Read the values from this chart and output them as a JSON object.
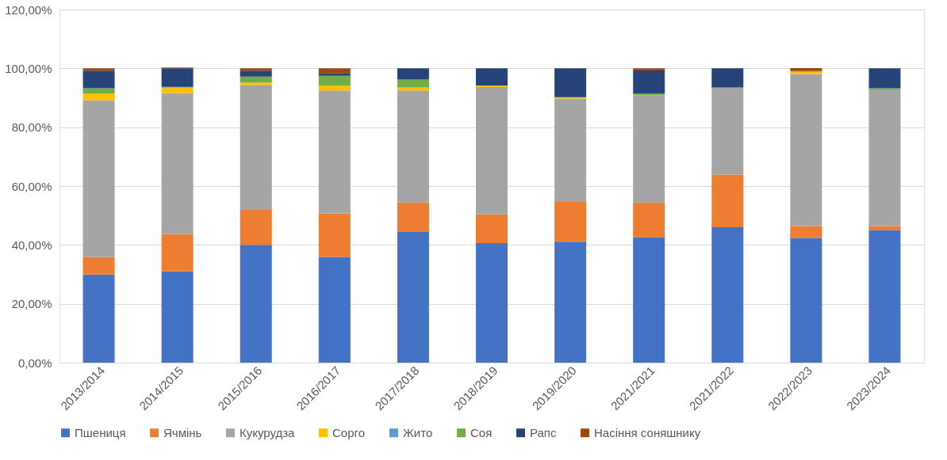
{
  "chart_data": {
    "type": "bar",
    "stacked": true,
    "grid": "y",
    "legend": "bottom",
    "categories": [
      "2013/2014",
      "2014/2015",
      "2015/2016",
      "2016/2017",
      "2017/2018",
      "2018/2019",
      "2019/2020",
      "2021/2021",
      "2021/2022",
      "2022/2023",
      "2023/2024"
    ],
    "ylim": [
      0,
      120
    ],
    "yticks": [
      {
        "value": 0,
        "label": "0,00%"
      },
      {
        "value": 20,
        "label": "20,00%"
      },
      {
        "value": 40,
        "label": "40,00%"
      },
      {
        "value": 60,
        "label": "60,00%"
      },
      {
        "value": 80,
        "label": "80,00%"
      },
      {
        "value": 100,
        "label": "100,00%"
      },
      {
        "value": 120,
        "label": "120,00%"
      }
    ],
    "series": [
      {
        "name": "Пшениця",
        "color": "#4472c4",
        "values": [
          29.9,
          31.0,
          40.0,
          35.9,
          44.4,
          40.6,
          41.1,
          42.6,
          46.0,
          42.4,
          45.1
        ]
      },
      {
        "name": "Ячмінь",
        "color": "#ed7d31",
        "values": [
          6.0,
          12.7,
          12.1,
          14.8,
          10.0,
          9.8,
          13.7,
          11.8,
          17.9,
          4.0,
          1.3
        ]
      },
      {
        "name": "Кукурудза",
        "color": "#a5a5a5",
        "values": [
          53.2,
          47.9,
          42.3,
          41.8,
          38.1,
          43.2,
          34.9,
          36.4,
          29.6,
          51.7,
          46.2
        ]
      },
      {
        "name": "Сорго",
        "color": "#ffc000",
        "values": [
          2.4,
          1.8,
          0.8,
          1.7,
          1.0,
          0.6,
          0.5,
          0,
          0,
          0.7,
          0
        ]
      },
      {
        "name": "Жито",
        "color": "#5b9bd5",
        "values": [
          0,
          0,
          0,
          0,
          0,
          0,
          0,
          0,
          0,
          0,
          0
        ]
      },
      {
        "name": "Соя",
        "color": "#70ad47",
        "values": [
          1.7,
          0.3,
          2.0,
          3.3,
          2.7,
          0,
          0,
          0.7,
          0,
          0.3,
          0.6
        ]
      },
      {
        "name": "Рапс",
        "color": "#264478",
        "values": [
          6.0,
          6.3,
          2.0,
          0.9,
          3.8,
          5.8,
          9.8,
          7.8,
          6.5,
          0,
          6.8
        ]
      },
      {
        "name": "Насіння соняшнику",
        "color": "#9e480e",
        "values": [
          0.8,
          0.3,
          0.8,
          1.6,
          0,
          0,
          0,
          0.7,
          0,
          1.0,
          0
        ]
      }
    ]
  }
}
